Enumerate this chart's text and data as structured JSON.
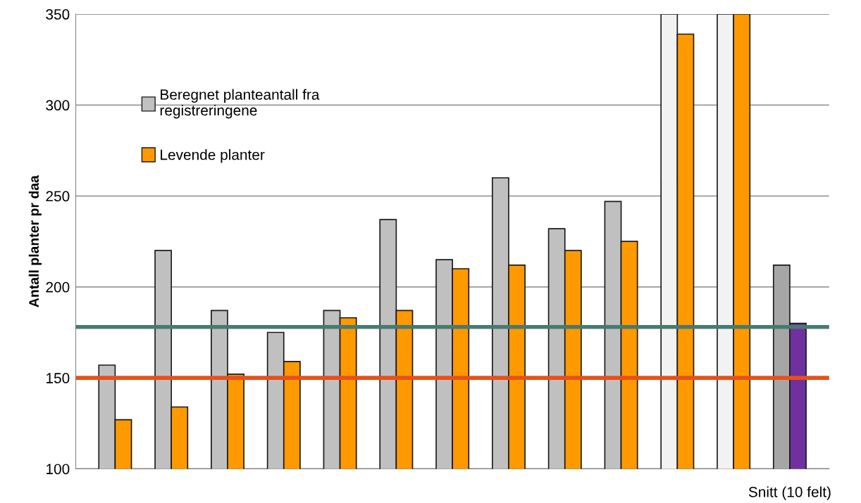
{
  "chart_data": {
    "type": "bar",
    "ylabel": "Antall planter pr daa",
    "categories": [
      null,
      null,
      null,
      null,
      null,
      null,
      null,
      null,
      null,
      null,
      null,
      null,
      "Snitt (10 felt)"
    ],
    "series": [
      {
        "name": "Beregnet planteantall fra registreringene",
        "color": "#c0c0c0",
        "colors": [
          "#c0c0c0",
          "#c0c0c0",
          "#c0c0c0",
          "#c0c0c0",
          "#c0c0c0",
          "#c0c0c0",
          "#c0c0c0",
          "#c0c0c0",
          "#c0c0c0",
          "#c0c0c0",
          "#f2f2f2",
          "#f2f2f2",
          "#a6a6a6"
        ],
        "values": [
          157,
          220,
          187,
          175,
          187,
          237,
          215,
          260,
          232,
          247,
          350,
          350,
          212
        ]
      },
      {
        "name": "Levende planter",
        "color": "#ff9900",
        "colors": [
          "#ff9900",
          "#ff9900",
          "#ff9900",
          "#ff9900",
          "#ff9900",
          "#ff9900",
          "#ff9900",
          "#ff9900",
          "#ff9900",
          "#ff9900",
          "#ff9900",
          "#ff9900",
          "#7030a0"
        ],
        "values": [
          127,
          134,
          152,
          159,
          183,
          187,
          210,
          212,
          220,
          225,
          339,
          350,
          180
        ]
      }
    ],
    "ylim": [
      100,
      350
    ],
    "yticks": [
      100,
      150,
      200,
      250,
      300,
      350
    ],
    "ref_lines": [
      {
        "axis": "y",
        "value": 178,
        "color": "#467a72"
      },
      {
        "axis": "y",
        "value": 150,
        "color": "#e8501a"
      }
    ],
    "grid": "y",
    "legend": "top left"
  }
}
